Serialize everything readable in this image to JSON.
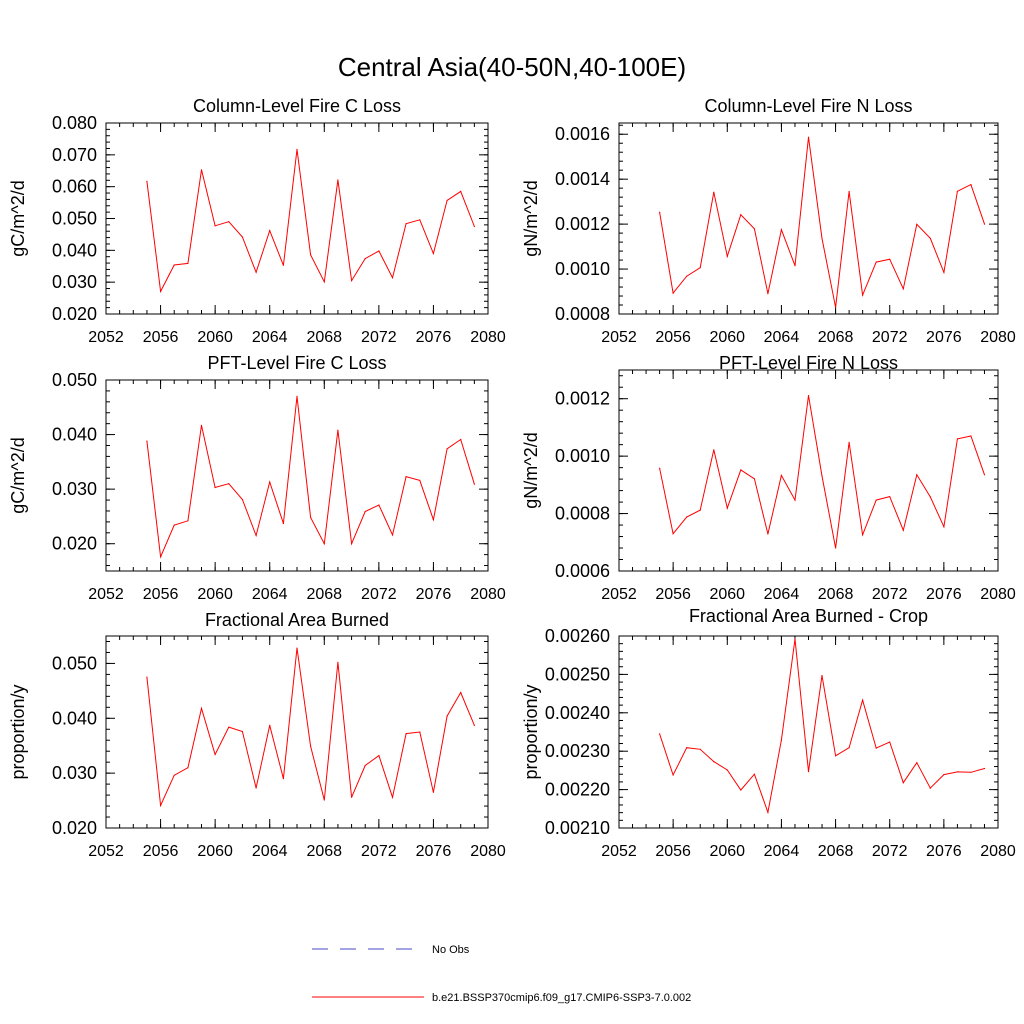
{
  "title": "Central Asia(40-50N,40-100E)",
  "colors": {
    "series": "#ff0000",
    "obs": "#4a4ac8",
    "axis": "#000000"
  },
  "legend": {
    "placement": "bottom-center",
    "entries": [
      {
        "label": "No Obs",
        "style": "dashed",
        "color": "#4a4ac8"
      },
      {
        "label": "b.e21.BSSP370cmip6.f09_g17.CMIP6-SSP3-7.0.002",
        "style": "solid",
        "color": "#ff0000"
      }
    ]
  },
  "chart_data": [
    {
      "type": "line",
      "title": "Column-Level Fire C Loss",
      "ylabel": "gC/m^2/d",
      "xlim": [
        2052,
        2080
      ],
      "ylim": [
        0.02,
        0.08
      ],
      "xticks": [
        2052,
        2056,
        2060,
        2064,
        2068,
        2072,
        2076,
        2080
      ],
      "xtick_labels": [
        "2052",
        "2056",
        "2060",
        "2064",
        "2068",
        "2072",
        "2076",
        "2080"
      ],
      "yticks": [
        0.02,
        0.03,
        0.04,
        0.05,
        0.06,
        0.07,
        0.08
      ],
      "ytick_labels": [
        "0.020",
        "0.030",
        "0.040",
        "0.050",
        "0.060",
        "0.070",
        "0.080"
      ],
      "yminor": 0.002,
      "x": [
        2055,
        2056,
        2057,
        2058,
        2059,
        2060,
        2061,
        2062,
        2063,
        2064,
        2065,
        2066,
        2067,
        2068,
        2069,
        2070,
        2071,
        2072,
        2073,
        2074,
        2075,
        2076,
        2077,
        2078,
        2079
      ],
      "y": [
        0.0617,
        0.0271,
        0.0354,
        0.0359,
        0.0653,
        0.0477,
        0.049,
        0.0442,
        0.0331,
        0.0462,
        0.0353,
        0.0717,
        0.0386,
        0.0301,
        0.0621,
        0.0305,
        0.0374,
        0.0398,
        0.0314,
        0.0484,
        0.0496,
        0.039,
        0.0557,
        0.0585,
        0.0475
      ]
    },
    {
      "type": "line",
      "title": "Column-Level Fire N Loss",
      "ylabel": "gN/m^2/d",
      "xlim": [
        2052,
        2080
      ],
      "ylim": [
        0.0008,
        0.00165
      ],
      "xticks": [
        2052,
        2056,
        2060,
        2064,
        2068,
        2072,
        2076,
        2080
      ],
      "xtick_labels": [
        "2052",
        "2056",
        "2060",
        "2064",
        "2068",
        "2072",
        "2076",
        "2080"
      ],
      "yticks": [
        0.0008,
        0.001,
        0.0012,
        0.0014,
        0.0016
      ],
      "ytick_labels": [
        "0.0008",
        "0.0010",
        "0.0012",
        "0.0014",
        "0.0016"
      ],
      "yminor": 4e-05,
      "x": [
        2055,
        2056,
        2057,
        2058,
        2059,
        2060,
        2061,
        2062,
        2063,
        2064,
        2065,
        2066,
        2067,
        2068,
        2069,
        2070,
        2071,
        2072,
        2073,
        2074,
        2075,
        2076,
        2077,
        2078,
        2079
      ],
      "y": [
        0.001253,
        0.000893,
        0.000968,
        0.001006,
        0.001342,
        0.001057,
        0.001242,
        0.001179,
        0.000891,
        0.001175,
        0.001015,
        0.001587,
        0.001136,
        0.00083,
        0.001345,
        0.000884,
        0.001031,
        0.001044,
        0.000912,
        0.001199,
        0.001137,
        0.000985,
        0.001346,
        0.001376,
        0.0012
      ]
    },
    {
      "type": "line",
      "title": "PFT-Level Fire C Loss",
      "ylabel": "gC/m^2/d",
      "xlim": [
        2052,
        2080
      ],
      "ylim": [
        0.015,
        0.05
      ],
      "xticks": [
        2052,
        2056,
        2060,
        2064,
        2068,
        2072,
        2076,
        2080
      ],
      "xtick_labels": [
        "2052",
        "2056",
        "2060",
        "2064",
        "2068",
        "2072",
        "2076",
        "2080"
      ],
      "yticks": [
        0.02,
        0.03,
        0.04,
        0.05
      ],
      "ytick_labels": [
        "0.020",
        "0.030",
        "0.040",
        "0.050"
      ],
      "yminor": 0.002,
      "x": [
        2055,
        2056,
        2057,
        2058,
        2059,
        2060,
        2061,
        2062,
        2063,
        2064,
        2065,
        2066,
        2067,
        2068,
        2069,
        2070,
        2071,
        2072,
        2073,
        2074,
        2075,
        2076,
        2077,
        2078,
        2079
      ],
      "y": [
        0.0388,
        0.0176,
        0.0234,
        0.0242,
        0.0417,
        0.0303,
        0.031,
        0.0281,
        0.0215,
        0.0313,
        0.0237,
        0.047,
        0.0248,
        0.02,
        0.0408,
        0.02,
        0.0259,
        0.0271,
        0.0216,
        0.0323,
        0.0316,
        0.0244,
        0.0374,
        0.0391,
        0.0309
      ]
    },
    {
      "type": "line",
      "title": "PFT-Level Fire N Loss",
      "ylabel": "gN/m^2/d",
      "xlim": [
        2052,
        2080
      ],
      "ylim": [
        0.0006,
        0.0013
      ],
      "xticks": [
        2052,
        2056,
        2060,
        2064,
        2068,
        2072,
        2076,
        2080
      ],
      "xtick_labels": [
        "2052",
        "2056",
        "2060",
        "2064",
        "2068",
        "2072",
        "2076",
        "2080"
      ],
      "yticks": [
        0.0006,
        0.0008,
        0.001,
        0.0012
      ],
      "ytick_labels": [
        "0.0006",
        "0.0008",
        "0.0010",
        "0.0012"
      ],
      "yminor": 4e-05,
      "x": [
        2055,
        2056,
        2057,
        2058,
        2059,
        2060,
        2061,
        2062,
        2063,
        2064,
        2065,
        2066,
        2067,
        2068,
        2069,
        2070,
        2071,
        2072,
        2073,
        2074,
        2075,
        2076,
        2077,
        2078,
        2079
      ],
      "y": [
        0.000958,
        0.00073,
        0.000788,
        0.000812,
        0.001022,
        0.000819,
        0.000952,
        0.000921,
        0.000729,
        0.000933,
        0.000847,
        0.001211,
        0.000931,
        0.00068,
        0.001048,
        0.000726,
        0.000847,
        0.000859,
        0.000742,
        0.000935,
        0.000858,
        0.000754,
        0.00106,
        0.00107,
        0.000935
      ]
    },
    {
      "type": "line",
      "title": "Fractional Area Burned",
      "ylabel": "proportion/y",
      "xlim": [
        2052,
        2080
      ],
      "ylim": [
        0.02,
        0.055
      ],
      "xticks": [
        2052,
        2056,
        2060,
        2064,
        2068,
        2072,
        2076,
        2080
      ],
      "xtick_labels": [
        "2052",
        "2056",
        "2060",
        "2064",
        "2068",
        "2072",
        "2076",
        "2080"
      ],
      "yticks": [
        0.02,
        0.03,
        0.04,
        0.05
      ],
      "ytick_labels": [
        "0.020",
        "0.030",
        "0.040",
        "0.050"
      ],
      "yminor": 0.002,
      "x": [
        2055,
        2056,
        2057,
        2058,
        2059,
        2060,
        2061,
        2062,
        2063,
        2064,
        2065,
        2066,
        2067,
        2068,
        2069,
        2070,
        2071,
        2072,
        2073,
        2074,
        2075,
        2076,
        2077,
        2078,
        2079
      ],
      "y": [
        0.0475,
        0.0241,
        0.0296,
        0.031,
        0.0418,
        0.0334,
        0.0384,
        0.0376,
        0.0273,
        0.0387,
        0.029,
        0.0528,
        0.0349,
        0.0251,
        0.0502,
        0.0256,
        0.0314,
        0.0332,
        0.0256,
        0.0372,
        0.0375,
        0.0265,
        0.0404,
        0.0447,
        0.0387
      ]
    },
    {
      "type": "line",
      "title": "Fractional Area Burned - Crop",
      "ylabel": "proportion/y",
      "xlim": [
        2052,
        2080
      ],
      "ylim": [
        0.0021,
        0.0026
      ],
      "xticks": [
        2052,
        2056,
        2060,
        2064,
        2068,
        2072,
        2076,
        2080
      ],
      "xtick_labels": [
        "2052",
        "2056",
        "2060",
        "2064",
        "2068",
        "2072",
        "2076",
        "2080"
      ],
      "yticks": [
        0.0021,
        0.0022,
        0.0023,
        0.0024,
        0.0025,
        0.0026
      ],
      "ytick_labels": [
        "0.00210",
        "0.00220",
        "0.00230",
        "0.00240",
        "0.00250",
        "0.00260"
      ],
      "yminor": 2e-05,
      "x": [
        2055,
        2056,
        2057,
        2058,
        2059,
        2060,
        2061,
        2062,
        2063,
        2064,
        2065,
        2066,
        2067,
        2068,
        2069,
        2070,
        2071,
        2072,
        2073,
        2074,
        2075,
        2076,
        2077,
        2078,
        2079
      ],
      "y": [
        0.002345,
        0.002238,
        0.002309,
        0.002305,
        0.002273,
        0.002251,
        0.002199,
        0.00224,
        0.002141,
        0.002329,
        0.002592,
        0.002247,
        0.002497,
        0.002288,
        0.002309,
        0.002433,
        0.002308,
        0.002324,
        0.002218,
        0.00227,
        0.002204,
        0.002239,
        0.002246,
        0.002245,
        0.002255
      ]
    }
  ]
}
